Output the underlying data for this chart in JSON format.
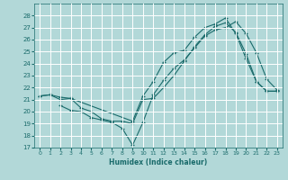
{
  "xlabel": "Humidex (Indice chaleur)",
  "ylabel": "",
  "background_color": "#b2d8d8",
  "grid_color": "#ffffff",
  "line_color": "#1a6b6b",
  "xlim": [
    -0.5,
    23.5
  ],
  "ylim": [
    17,
    29
  ],
  "yticks": [
    17,
    18,
    19,
    20,
    21,
    22,
    23,
    24,
    25,
    26,
    27,
    28
  ],
  "xticks": [
    0,
    1,
    2,
    3,
    4,
    5,
    6,
    7,
    8,
    9,
    10,
    11,
    12,
    13,
    14,
    15,
    16,
    17,
    18,
    19,
    20,
    21,
    22,
    23
  ],
  "lines": [
    {
      "comment": "Line 1: starts at x=0 y~21.3, goes gently to x=1 y~21.4, x=2 y~21.3, then dips through x=3..9, then rises steeply to peak x=18 y~27.8, then drops to x=19 y~26.6, x=20 y~24.5, x=21 y~22.6, x=22 y~21.8, x=23 y~21.8",
      "x": [
        0,
        1,
        2,
        3,
        9,
        10,
        11,
        12,
        13,
        14,
        15,
        16,
        17,
        18,
        19,
        20,
        21,
        22,
        23
      ],
      "y": [
        21.3,
        21.4,
        21.2,
        21.1,
        19.2,
        21.3,
        22.5,
        24.1,
        24.9,
        25.1,
        26.2,
        27.0,
        27.3,
        27.8,
        26.5,
        24.4,
        22.5,
        21.7,
        21.7
      ]
    },
    {
      "comment": "Line 2: starts x=2 y~21.0, x=3 y~20.1, goes down to x=9 y~17.2, then rises steeply to x=18 y~27.0, x=19 y~27.5, then drops to x=20 y~26.6, x=21 y~24.9, drops to x=22 y~22.7, x=23 y~21.8",
      "x": [
        2,
        3,
        4,
        5,
        6,
        7,
        8,
        9,
        10,
        11,
        12,
        13,
        14,
        15,
        16,
        17,
        18,
        19,
        20,
        21,
        22,
        23
      ],
      "y": [
        20.5,
        20.1,
        20.0,
        19.5,
        19.3,
        19.1,
        18.6,
        17.2,
        19.1,
        21.4,
        22.6,
        23.6,
        24.3,
        25.3,
        26.3,
        26.8,
        27.0,
        27.5,
        26.5,
        24.9,
        22.7,
        21.8
      ]
    },
    {
      "comment": "Line 3: starts x=0 y~21.3, x=1 y~21.4, x=2 y~21.0, x=3 y~21.1, then goes to x=9 y~19.0, then rises to x=18 y~27.3, x=19 y~26.6 (peak is at x=19 y=26.6), then drops to x=20 y~24.8, x=21 y~22.5, x=22 y~21.8, x=23 y~21.8",
      "x": [
        0,
        1,
        2,
        3,
        4,
        5,
        6,
        7,
        8,
        9,
        10,
        11,
        12,
        13,
        14,
        15,
        16,
        17,
        18,
        19,
        20,
        21,
        22,
        23
      ],
      "y": [
        21.3,
        21.4,
        21.0,
        21.1,
        20.3,
        20.0,
        19.4,
        19.2,
        19.2,
        19.0,
        21.0,
        21.1,
        22.0,
        23.0,
        24.2,
        25.4,
        26.4,
        27.1,
        27.4,
        26.6,
        24.8,
        22.5,
        21.7,
        21.7
      ]
    }
  ]
}
